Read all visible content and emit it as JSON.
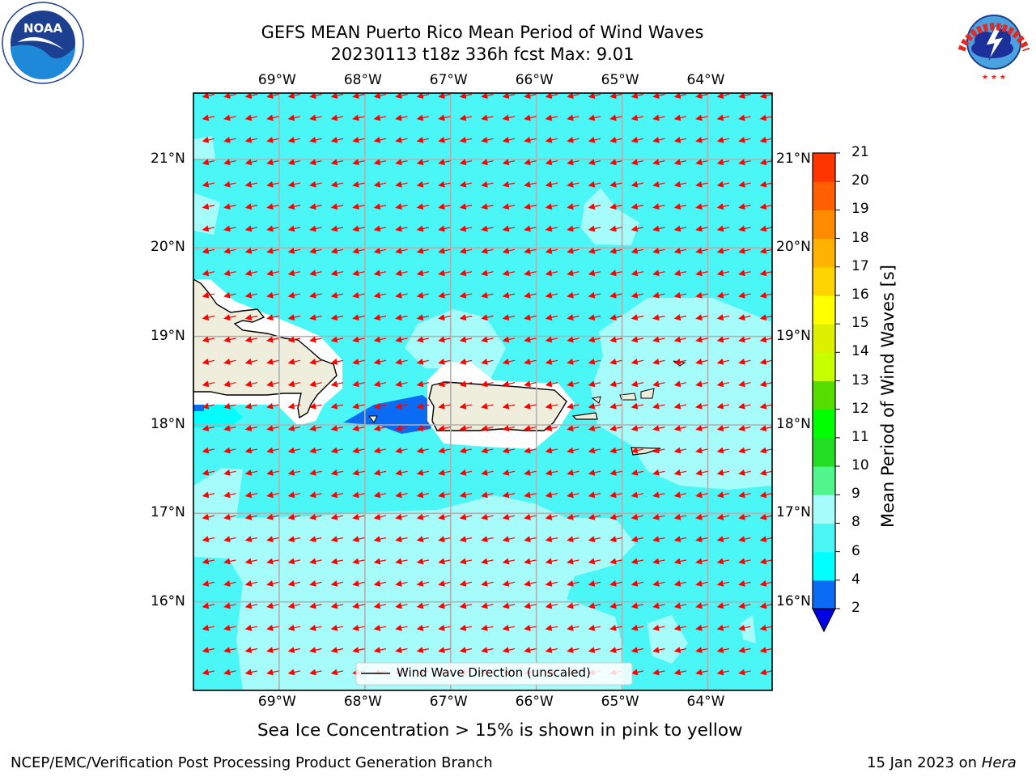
{
  "header": {
    "title_line1": "GEFS MEAN Puerto Rico Mean Period of Wind Waves",
    "title_line2": "20230113 t18z 336h fcst   Max: 9.01"
  },
  "logos": {
    "left": {
      "text": "NOAA",
      "ring_text": "NATIONAL OCEANIC AND ATMOSPHERIC ADMINISTRATION · U.S. DEPARTMENT OF COMMERCE",
      "color": "#1d3f8f"
    },
    "right": {
      "ring_text": "NATIONAL WEATHER SERVICE",
      "color": "#e8281e"
    }
  },
  "map": {
    "lon_ticks": [
      "69°W",
      "68°W",
      "67°W",
      "66°W",
      "65°W",
      "64°W"
    ],
    "lat_ticks": [
      "21°N",
      "20°N",
      "19°N",
      "18°N",
      "17°N",
      "16°N"
    ],
    "lon_range": [
      -70.0,
      -63.25
    ],
    "lat_range": [
      15.0,
      21.75
    ],
    "grid": true,
    "arrow_color": "#ff0000",
    "arrow_direction": "toward west-southwest",
    "land_color": "#efeddc",
    "legend": {
      "label": "Wind Wave Direction (unscaled)",
      "placement": "bottom-center"
    }
  },
  "colorbar": {
    "title": "Mean Period of Wind Waves [s]",
    "tick_labels": [
      "2",
      "4",
      "6",
      "8",
      "9",
      "10",
      "11",
      "12",
      "13",
      "14",
      "15",
      "16",
      "17",
      "18",
      "19",
      "20",
      "21"
    ],
    "colors": [
      "#0000e6",
      "#0a6cf5",
      "#00ffff",
      "#4af6f6",
      "#a6fbfb",
      "#50f58c",
      "#22dd22",
      "#00ff00",
      "#55dd00",
      "#c8ff00",
      "#ddf000",
      "#ffff00",
      "#ffd400",
      "#ffb200",
      "#ff8c00",
      "#ff5f00",
      "#ff3500",
      "#ff0000"
    ]
  },
  "caption": "Sea Ice Concentration > 15% is shown in pink to yellow",
  "footer": {
    "left": "NCEP/EMC/Verification Post Processing Product Generation Branch",
    "right_date": "15 Jan 2023 on ",
    "right_host": "Hera"
  }
}
